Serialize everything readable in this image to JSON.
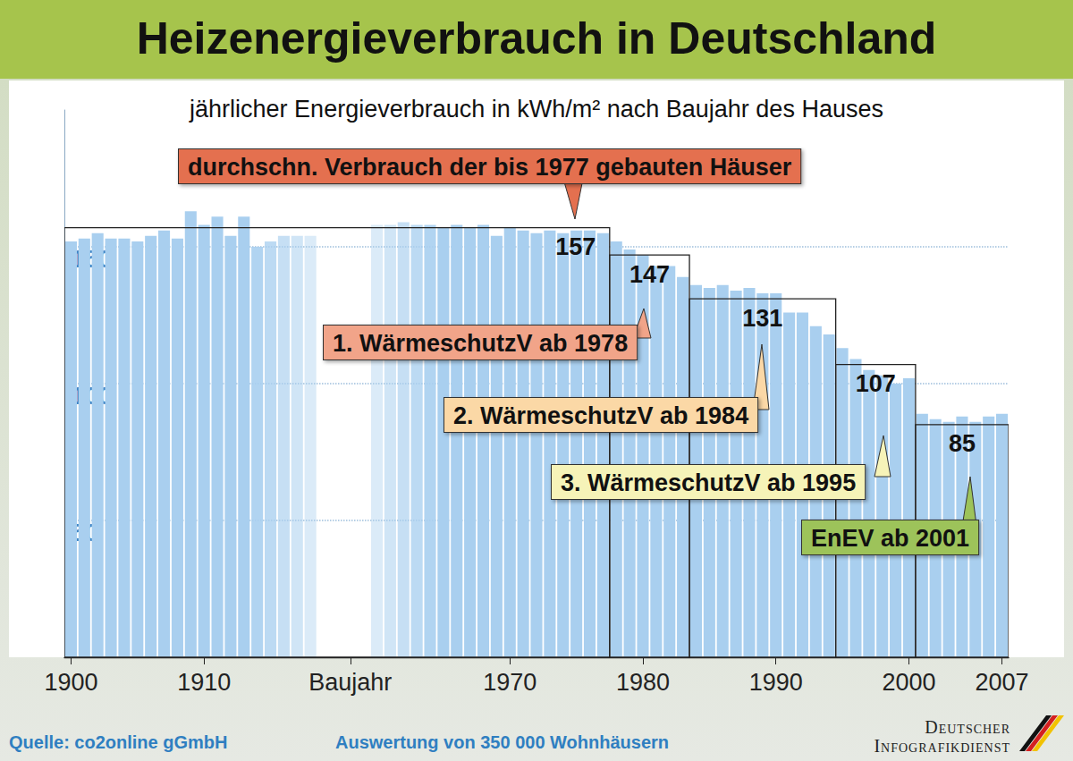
{
  "chart_data": {
    "type": "bar",
    "title": "Heizenergieverbrauch in Deutschland",
    "subtitle": "jährlicher Energieverbrauch in kWh/m² nach Baujahr des Hauses",
    "categories": [
      "1900",
      null,
      null,
      null,
      null,
      null,
      null,
      null,
      null,
      null,
      "1910",
      null,
      null,
      null,
      null,
      null,
      null,
      null,
      null,
      null,
      null,
      "Baujahr",
      null,
      null,
      null,
      null,
      null,
      null,
      null,
      null,
      null,
      null,
      null,
      "1970",
      null,
      null,
      null,
      null,
      null,
      null,
      null,
      null,
      null,
      "1980",
      null,
      null,
      null,
      null,
      null,
      null,
      null,
      null,
      null,
      "1990",
      null,
      null,
      null,
      null,
      null,
      null,
      null,
      null,
      null,
      "2000",
      null,
      null,
      null,
      null,
      null,
      null,
      "2007"
    ],
    "values": [
      152,
      153,
      155,
      153,
      153,
      152,
      154,
      156,
      153,
      163,
      158,
      161,
      154,
      161,
      150,
      152,
      154,
      154,
      154,
      null,
      null,
      null,
      null,
      158,
      158,
      159,
      158,
      158,
      157,
      158,
      157,
      158,
      154,
      157,
      156,
      155,
      156,
      155,
      156,
      156,
      155,
      152,
      149,
      147,
      143,
      143,
      139,
      136,
      135,
      136,
      134,
      135,
      133,
      133,
      126,
      126,
      121,
      118,
      113,
      109,
      105,
      103,
      100,
      102,
      89,
      87,
      86,
      88,
      86,
      88,
      89
    ],
    "color": "#a9cfef",
    "ylim": [
      0,
      200
    ],
    "yticks": [
      50,
      100,
      150
    ],
    "grid": true,
    "annotations": [
      {
        "label": "durchschn. Verbrauch der bis 1977 gebauten Häuser",
        "value": 157,
        "from": 0,
        "to": 40
      },
      {
        "label": "1. WärmeschutzV ab 1978",
        "value": 147,
        "from": 41,
        "to": 46
      },
      {
        "label": "2. WärmeschutzV ab 1984",
        "value": 131,
        "from": 47,
        "to": 57
      },
      {
        "label": "3. WärmeschutzV ab 1995",
        "value": 107,
        "from": 58,
        "to": 63
      },
      {
        "label": "EnEV ab 2001",
        "value": 85,
        "from": 64,
        "to": 70
      }
    ],
    "source": "Quelle: co2online gGmbH",
    "note": "Auswertung von 350 000 Wohnhäusern",
    "publisher": "Deutscher Infografikdienst"
  }
}
